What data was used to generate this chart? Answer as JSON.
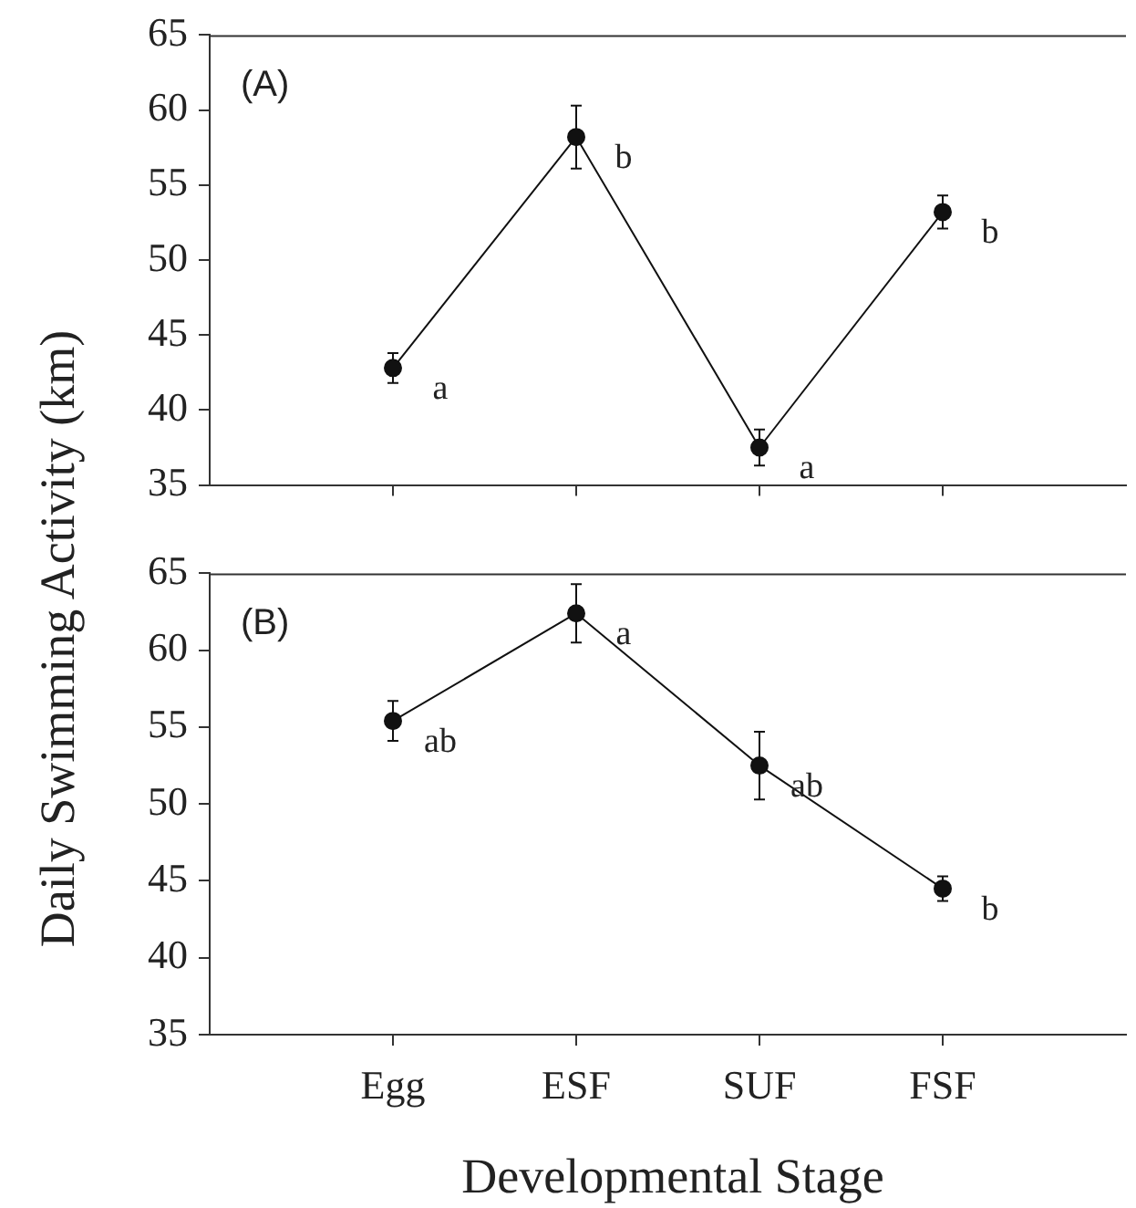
{
  "chart_data": [
    {
      "type": "line",
      "title": "(A)",
      "ylabel": "Daily Swimming Activity (km)",
      "categories": [
        "Egg",
        "ESF",
        "SUF",
        "FSF"
      ],
      "series": [
        {
          "color": "#111111",
          "values": [
            42.8,
            58.2,
            37.5,
            53.2
          ],
          "errors": [
            1.0,
            2.1,
            1.2,
            1.1
          ]
        }
      ],
      "ylim": [
        35,
        65
      ],
      "yticks": [
        35,
        40,
        45,
        50,
        55,
        60,
        65
      ],
      "tick_labels": "y",
      "grid": false,
      "legend": false,
      "marker": "circle",
      "line_style": "solid",
      "annotations": [
        {
          "text": "a",
          "x": "Egg",
          "y": 42.8
        },
        {
          "text": "b",
          "x": "ESF",
          "y": 58.2
        },
        {
          "text": "a",
          "x": "SUF",
          "y": 37.5
        },
        {
          "text": "b",
          "x": "FSF",
          "y": 53.2
        }
      ]
    },
    {
      "type": "line",
      "title": "(B)",
      "xlabel": "Developmental Stage",
      "categories": [
        "Egg",
        "ESF",
        "SUF",
        "FSF"
      ],
      "series": [
        {
          "color": "#111111",
          "values": [
            55.4,
            62.4,
            52.5,
            44.5
          ],
          "errors": [
            1.3,
            1.9,
            2.2,
            0.8
          ]
        }
      ],
      "ylim": [
        35,
        65
      ],
      "yticks": [
        35,
        40,
        45,
        50,
        55,
        60,
        65
      ],
      "grid": false,
      "legend": false,
      "marker": "circle",
      "line_style": "solid",
      "annotations": [
        {
          "text": "ab",
          "x": "Egg",
          "y": 55.4
        },
        {
          "text": "a",
          "x": "ESF",
          "y": 62.4
        },
        {
          "text": "ab",
          "x": "SUF",
          "y": 52.5
        },
        {
          "text": "b",
          "x": "FSF",
          "y": 44.5
        }
      ]
    }
  ]
}
